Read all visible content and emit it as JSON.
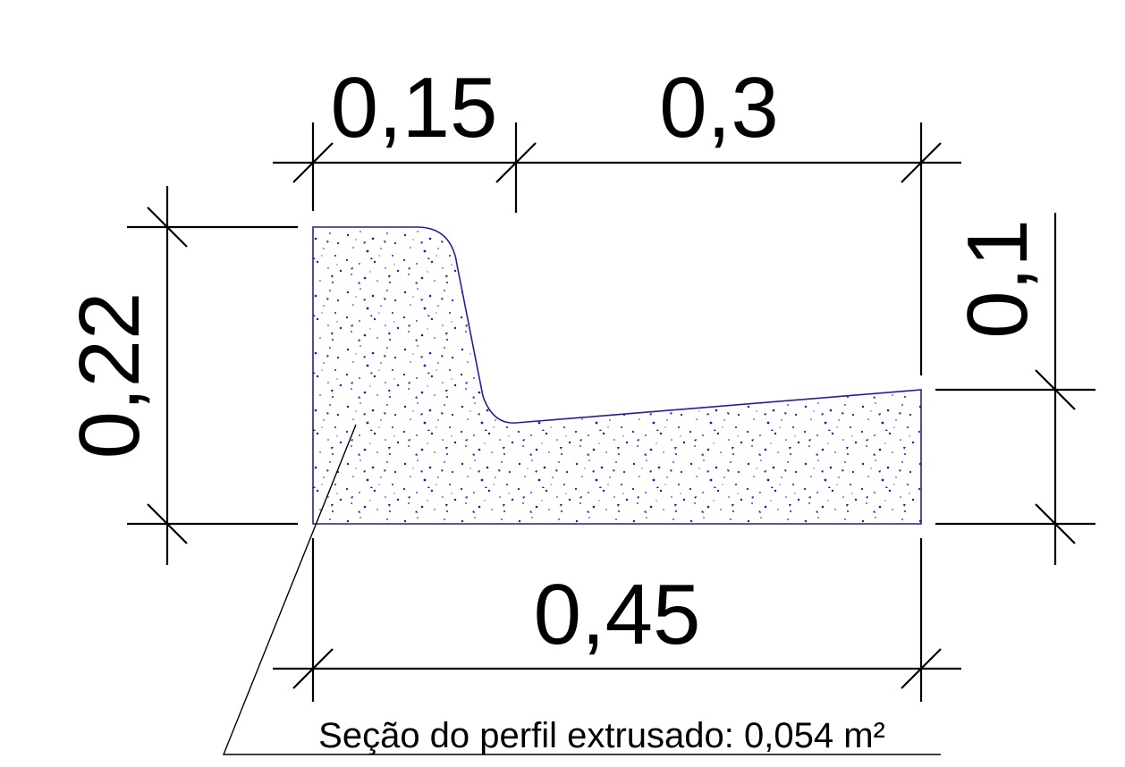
{
  "dimensions": {
    "top_left": "0,15",
    "top_right": "0,3",
    "left_height": "0,22",
    "right_height": "0,1",
    "bottom_width": "0,45"
  },
  "note": {
    "label": "Seção do perfil extrusado: 0,054 m²"
  },
  "colors": {
    "section_stroke": "#1f1fa0",
    "section_dots": "#1a1aa8",
    "lines": "#000000"
  }
}
